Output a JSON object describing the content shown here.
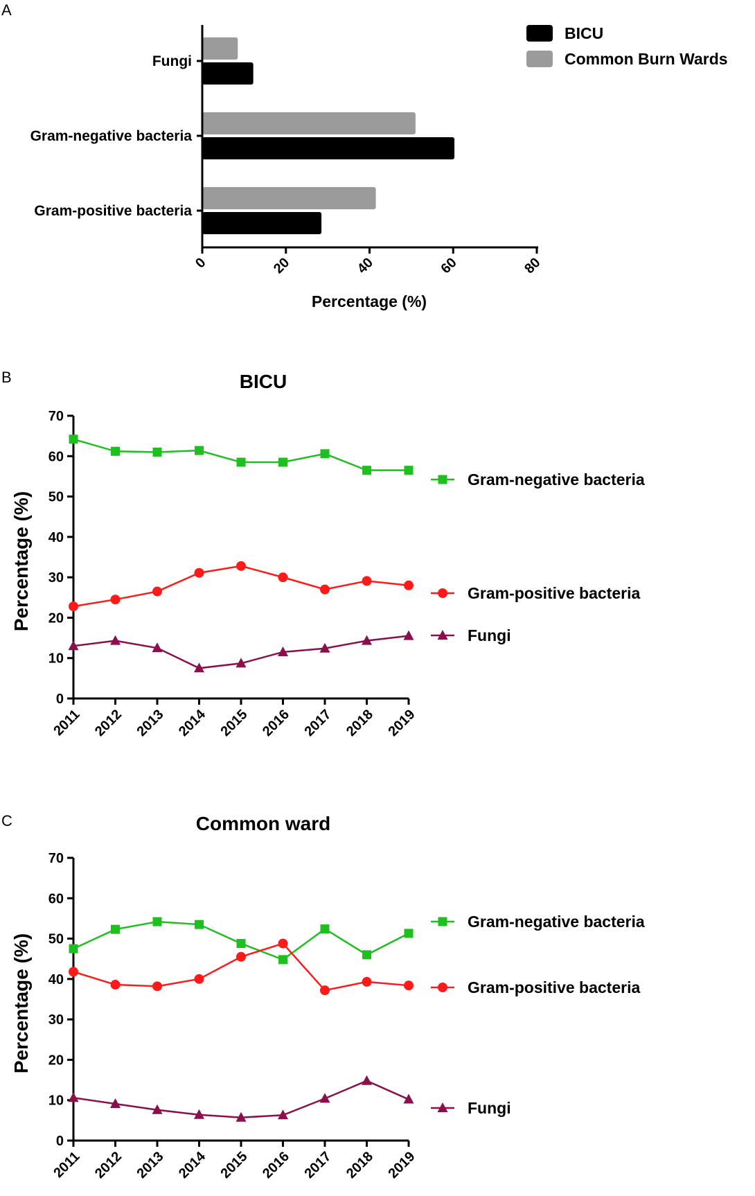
{
  "chart_data": [
    {
      "panel": "A",
      "type": "bar",
      "orientation": "horizontal",
      "title": "",
      "categories": [
        "Fungi",
        "Gram-negative bacteria",
        "Gram-positive bacteria"
      ],
      "series": [
        {
          "name": "Common Burn Wards",
          "color": "#9b9b9b",
          "values": [
            8.5,
            51.0,
            41.5
          ]
        },
        {
          "name": "BICU",
          "color": "#000000",
          "values": [
            12.2,
            60.3,
            28.5
          ]
        }
      ],
      "xlabel": "Percentage (%)",
      "ylabel": "",
      "xlim": [
        0,
        80
      ],
      "xticks": [
        "0",
        "20",
        "40",
        "60",
        "80"
      ],
      "legend": [
        "BICU",
        "Common Burn Wards"
      ],
      "legend_position": "top-right"
    },
    {
      "panel": "B",
      "type": "line",
      "title": "BICU",
      "x": [
        "2011",
        "2012",
        "2013",
        "2014",
        "2015",
        "2016",
        "2017",
        "2018",
        "2019"
      ],
      "series": [
        {
          "name": "Gram-negative bacteria",
          "color": "#1fbf1f",
          "marker": "square",
          "values": [
            64.2,
            61.2,
            61.0,
            61.4,
            58.5,
            58.5,
            60.6,
            56.5,
            56.5
          ]
        },
        {
          "name": "Gram-positive bacteria",
          "color": "#ff1a1a",
          "marker": "circle",
          "values": [
            22.8,
            24.5,
            26.5,
            31.1,
            32.8,
            30.0,
            27.0,
            29.1,
            28.0
          ]
        },
        {
          "name": "Fungi",
          "color": "#8b0f4a",
          "marker": "triangle",
          "values": [
            13.0,
            14.3,
            12.5,
            7.5,
            8.7,
            11.5,
            12.4,
            14.3,
            15.5
          ]
        }
      ],
      "xlabel": "",
      "ylabel": "Percentage (%)",
      "ylim": [
        0,
        70
      ],
      "yticks": [
        "0",
        "10",
        "20",
        "30",
        "40",
        "50",
        "60",
        "70"
      ],
      "legend_position": "right"
    },
    {
      "panel": "C",
      "type": "line",
      "title": "Common ward",
      "x": [
        "2011",
        "2012",
        "2013",
        "2014",
        "2015",
        "2016",
        "2017",
        "2018",
        "2019"
      ],
      "series": [
        {
          "name": "Gram-negative bacteria",
          "color": "#1fbf1f",
          "marker": "square",
          "values": [
            47.5,
            52.3,
            54.2,
            53.5,
            48.8,
            44.8,
            52.4,
            46.0,
            51.3
          ]
        },
        {
          "name": "Gram-positive bacteria",
          "color": "#ff1a1a",
          "marker": "circle",
          "values": [
            41.8,
            38.6,
            38.2,
            40.0,
            45.5,
            48.8,
            37.2,
            39.3,
            38.4
          ]
        },
        {
          "name": "Fungi",
          "color": "#8b0f4a",
          "marker": "triangle",
          "values": [
            10.6,
            9.1,
            7.6,
            6.4,
            5.7,
            6.3,
            10.4,
            14.8,
            10.2
          ]
        }
      ],
      "xlabel": "",
      "ylabel": "Percentage (%)",
      "ylim": [
        0,
        70
      ],
      "yticks": [
        "0",
        "10",
        "20",
        "30",
        "40",
        "50",
        "60",
        "70"
      ],
      "legend_position": "right"
    }
  ],
  "panel_labels": [
    "A",
    "B",
    "C"
  ]
}
